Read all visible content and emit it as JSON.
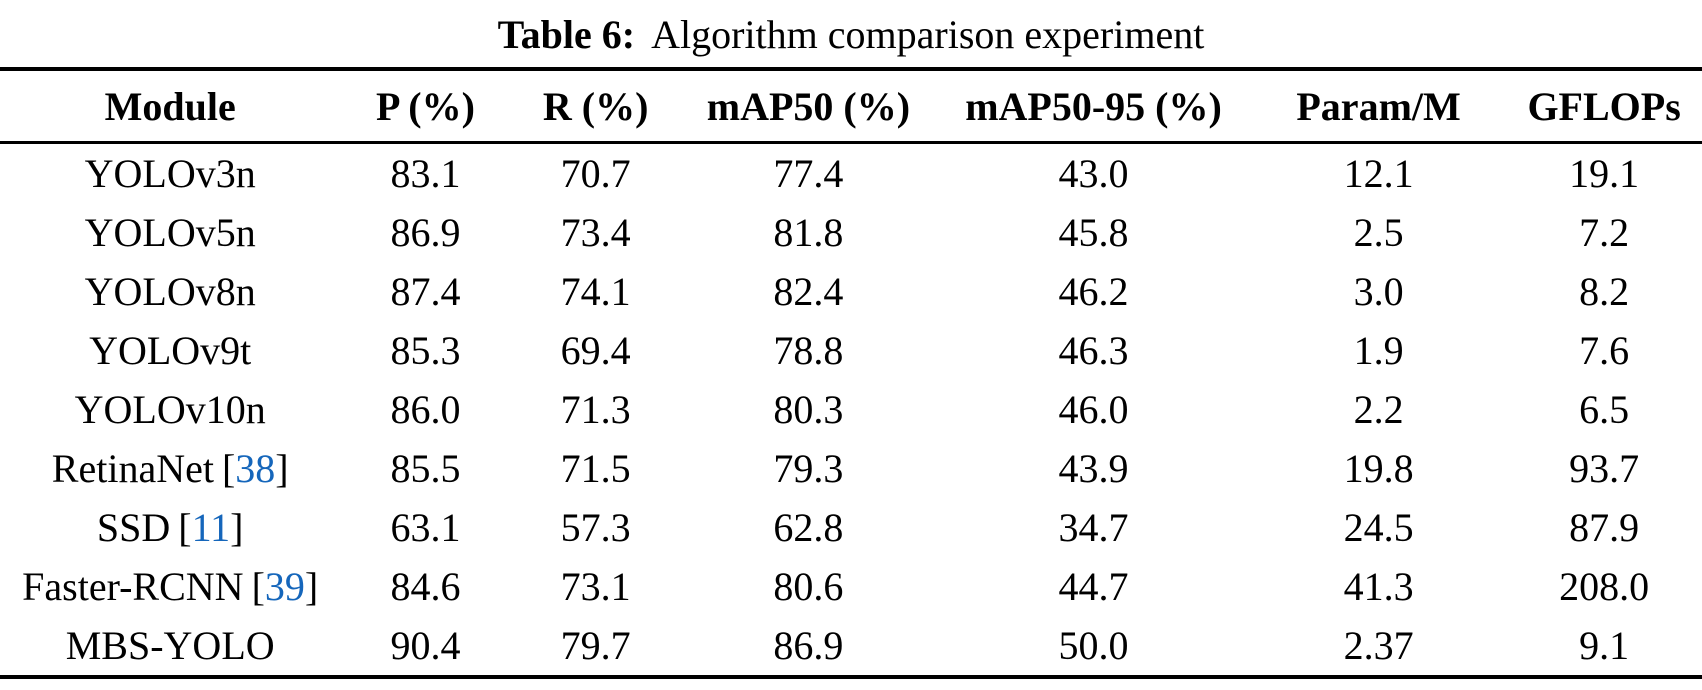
{
  "page": {
    "background": "#ffffff"
  },
  "colors": {
    "text": "#000000",
    "rule": "#000000",
    "citation_link": "#1566bb"
  },
  "caption": {
    "label": "Table 6:",
    "text": "Algorithm comparison experiment"
  },
  "table": {
    "columns": [
      "Module",
      "P (%)",
      "R (%)",
      "mAP50 (%)",
      "mAP50-95 (%)",
      "Param/M",
      "GFLOPs"
    ],
    "rows": [
      {
        "module": "YOLOv3n",
        "citation": null,
        "values": [
          "83.1",
          "70.7",
          "77.4",
          "43.0",
          "12.1",
          "19.1"
        ]
      },
      {
        "module": "YOLOv5n",
        "citation": null,
        "values": [
          "86.9",
          "73.4",
          "81.8",
          "45.8",
          "2.5",
          "7.2"
        ]
      },
      {
        "module": "YOLOv8n",
        "citation": null,
        "values": [
          "87.4",
          "74.1",
          "82.4",
          "46.2",
          "3.0",
          "8.2"
        ]
      },
      {
        "module": "YOLOv9t",
        "citation": null,
        "values": [
          "85.3",
          "69.4",
          "78.8",
          "46.3",
          "1.9",
          "7.6"
        ]
      },
      {
        "module": "YOLOv10n",
        "citation": null,
        "values": [
          "86.0",
          "71.3",
          "80.3",
          "46.0",
          "2.2",
          "6.5"
        ]
      },
      {
        "module": "RetinaNet",
        "citation": "38",
        "values": [
          "85.5",
          "71.5",
          "79.3",
          "43.9",
          "19.8",
          "93.7"
        ]
      },
      {
        "module": "SSD",
        "citation": "11",
        "values": [
          "63.1",
          "57.3",
          "62.8",
          "34.7",
          "24.5",
          "87.9"
        ]
      },
      {
        "module": "Faster-RCNN",
        "citation": "39",
        "values": [
          "84.6",
          "73.1",
          "80.6",
          "44.7",
          "41.3",
          "208.0"
        ]
      },
      {
        "module": "MBS-YOLO",
        "citation": null,
        "values": [
          "90.4",
          "79.7",
          "86.9",
          "50.0",
          "2.37",
          "9.1"
        ]
      }
    ]
  }
}
